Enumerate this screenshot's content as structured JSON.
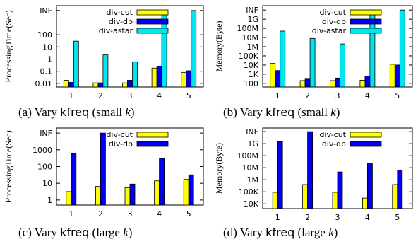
{
  "colors": {
    "div-cut": "#ffff00",
    "div-dp": "#0000ee",
    "div-astar": "#00e5ee",
    "axis": "#000000"
  },
  "chart_data": [
    {
      "id": "a",
      "type": "bar",
      "log_scale": true,
      "caption_prefix": "(a) Vary ",
      "caption_code": "kfreq",
      "caption_suffix_open": " (small ",
      "caption_var": "k",
      "caption_suffix_close": ")",
      "ylabel": "ProcessingTime(Sec)",
      "categories": [
        "1",
        "2",
        "3",
        "4",
        "5"
      ],
      "y_ticks": [
        {
          "label": "INF",
          "value": 10000
        },
        {
          "label": "100",
          "value": 100
        },
        {
          "label": "10",
          "value": 10
        },
        {
          "label": "1",
          "value": 1
        },
        {
          "label": "0.1",
          "value": 0.1
        },
        {
          "label": "0.01",
          "value": 0.01
        }
      ],
      "ylim": [
        0.005,
        25000
      ],
      "legend_position": "top-right",
      "series": [
        {
          "name": "div-cut",
          "color_key": "div-cut",
          "values": [
            0.018,
            0.011,
            0.011,
            0.18,
            0.08
          ]
        },
        {
          "name": "div-dp",
          "color_key": "div-dp",
          "values": [
            0.012,
            0.011,
            0.018,
            0.26,
            0.11
          ]
        },
        {
          "name": "div-astar",
          "color_key": "div-astar",
          "values": [
            30,
            2.2,
            0.6,
            10000,
            10000
          ]
        }
      ]
    },
    {
      "id": "b",
      "type": "bar",
      "log_scale": true,
      "caption_prefix": "(b) Vary ",
      "caption_code": "kfreq",
      "caption_suffix_open": " (small ",
      "caption_var": "k",
      "caption_suffix_close": ")",
      "ylabel": "Memory(Byte)",
      "categories": [
        "1",
        "2",
        "3",
        "4",
        "5"
      ],
      "y_ticks": [
        {
          "label": "INF",
          "value": 10000000000
        },
        {
          "label": "1G",
          "value": 1000000000
        },
        {
          "label": "100M",
          "value": 100000000
        },
        {
          "label": "10M",
          "value": 10000000
        },
        {
          "label": "1M",
          "value": 1000000
        },
        {
          "label": "100K",
          "value": 100000
        },
        {
          "label": "10K",
          "value": 10000
        },
        {
          "label": "1K",
          "value": 1000
        },
        {
          "label": "100",
          "value": 100
        }
      ],
      "ylim": [
        40,
        30000000000
      ],
      "legend_position": "top-right",
      "series": [
        {
          "name": "div-cut",
          "color_key": "div-cut",
          "values": [
            15000,
            200,
            200,
            220,
            12000
          ]
        },
        {
          "name": "div-dp",
          "color_key": "div-dp",
          "values": [
            2500,
            350,
            380,
            600,
            10000
          ]
        },
        {
          "name": "div-astar",
          "color_key": "div-astar",
          "values": [
            50000000,
            8000000,
            2000000,
            10000000000,
            10000000000
          ]
        }
      ]
    },
    {
      "id": "c",
      "type": "bar",
      "log_scale": true,
      "caption_prefix": "(c) Vary ",
      "caption_code": "kfreq",
      "caption_suffix_open": " (large ",
      "caption_var": "k",
      "caption_suffix_close": ")",
      "ylabel": "ProcessingTime(Sec)",
      "categories": [
        "1",
        "2",
        "3",
        "4",
        "5"
      ],
      "y_ticks": [
        {
          "label": "INF",
          "value": 10000
        },
        {
          "label": "1000",
          "value": 1000
        },
        {
          "label": "100",
          "value": 100
        },
        {
          "label": "10",
          "value": 10
        },
        {
          "label": "1",
          "value": 1
        }
      ],
      "ylim": [
        0.5,
        20000
      ],
      "legend_position": "top-right",
      "series": [
        {
          "name": "div-cut",
          "color_key": "div-cut",
          "values": [
            3.2,
            6.5,
            5.5,
            14,
            17
          ]
        },
        {
          "name": "div-dp",
          "color_key": "div-dp",
          "values": [
            600,
            10000,
            9,
            300,
            32
          ]
        }
      ]
    },
    {
      "id": "d",
      "type": "bar",
      "log_scale": true,
      "caption_prefix": "(d) Vary ",
      "caption_code": "kfreq",
      "caption_suffix_open": " (large ",
      "caption_var": "k",
      "caption_suffix_close": ")",
      "ylabel": "Memory(Byte)",
      "categories": [
        "1",
        "2",
        "3",
        "4",
        "5"
      ],
      "y_ticks": [
        {
          "label": "INF",
          "value": 10000000000
        },
        {
          "label": "1G",
          "value": 1000000000
        },
        {
          "label": "100M",
          "value": 100000000
        },
        {
          "label": "10M",
          "value": 10000000
        },
        {
          "label": "1M",
          "value": 1000000
        },
        {
          "label": "100K",
          "value": 100000
        },
        {
          "label": "10K",
          "value": 10000
        }
      ],
      "ylim": [
        4000,
        20000000000
      ],
      "legend_position": "top-right",
      "series": [
        {
          "name": "div-cut",
          "color_key": "div-cut",
          "values": [
            90000,
            400000,
            90000,
            30000,
            400000
          ]
        },
        {
          "name": "div-dp",
          "color_key": "div-dp",
          "values": [
            1500000000,
            10000000000,
            4500000,
            25000000,
            6000000
          ]
        }
      ]
    }
  ]
}
